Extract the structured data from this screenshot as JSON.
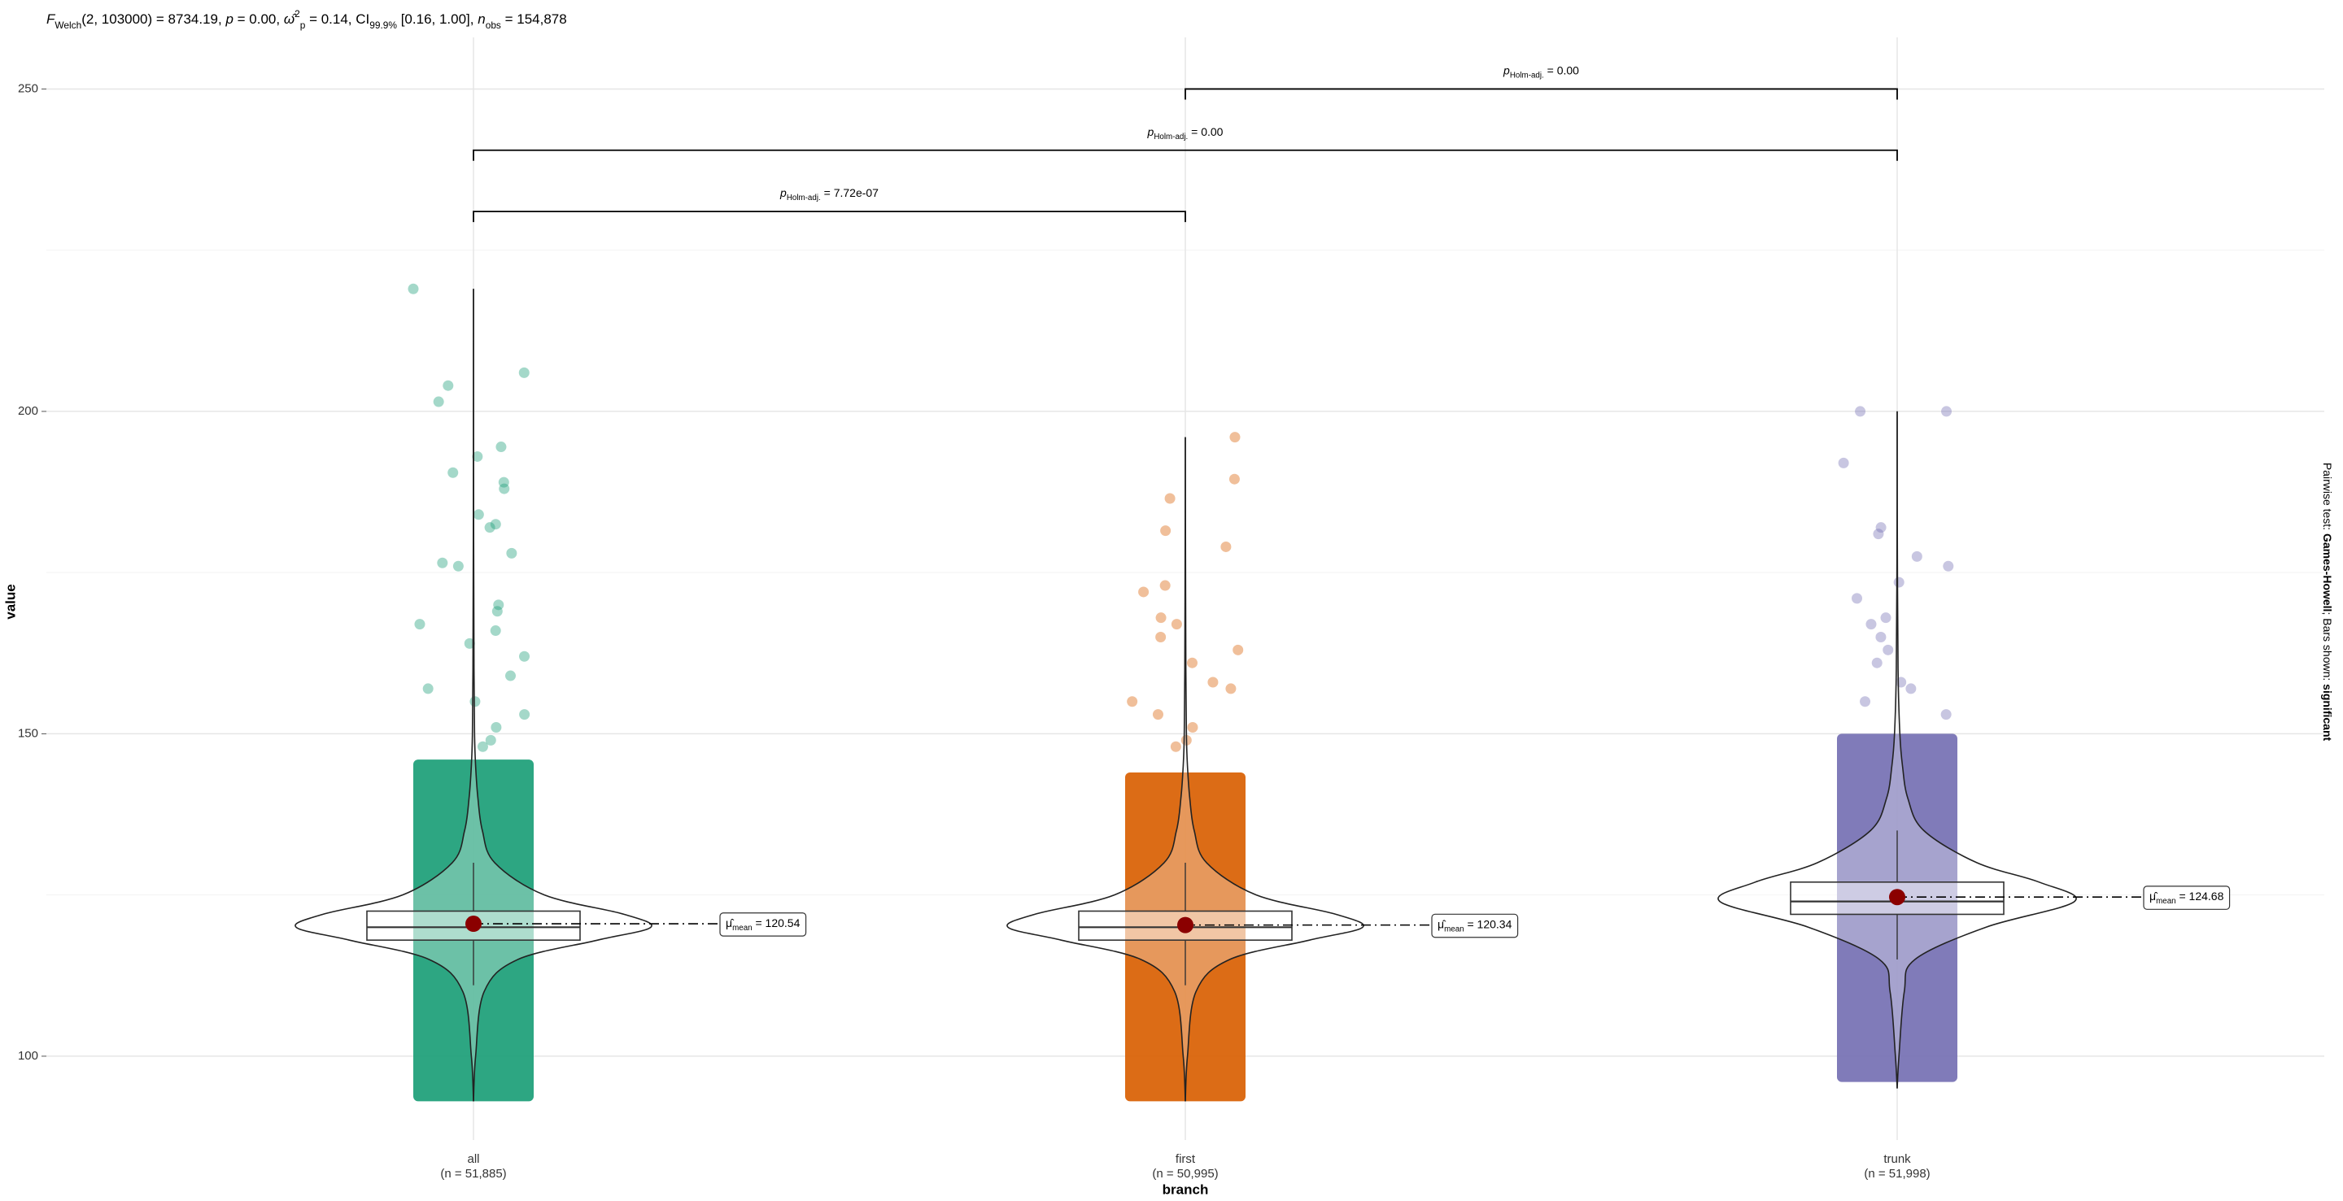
{
  "chart_data": {
    "type": "violin-box",
    "subtitle": [
      {
        "text": "F",
        "style": "italic"
      },
      {
        "text": "Welch",
        "style": "sub"
      },
      {
        "text": "(2, 103000) = 8734.19, ",
        "style": "normal"
      },
      {
        "text": "p",
        "style": "italic"
      },
      {
        "text": " = 0.00, ",
        "style": "normal"
      },
      {
        "text": "ω̂",
        "style": "italic"
      },
      {
        "text": "2",
        "style": "sup"
      },
      {
        "text": "p",
        "style": "sub"
      },
      {
        "text": " = 0.14, CI",
        "style": "normal"
      },
      {
        "text": "99.9%",
        "style": "sub"
      },
      {
        "text": " [0.16, 1.00], ",
        "style": "normal"
      },
      {
        "text": "n",
        "style": "italic"
      },
      {
        "text": "obs",
        "style": "sub"
      },
      {
        "text": " = 154,878",
        "style": "normal"
      }
    ],
    "caption": [
      {
        "text": "Pairwise test: ",
        "style": "normal"
      },
      {
        "text": "Games-Howell",
        "style": "bold"
      },
      {
        "text": "; Bars shown: ",
        "style": "normal"
      },
      {
        "text": "significant",
        "style": "bold"
      }
    ],
    "x_label": "branch",
    "y_label": "value",
    "ylim": [
      87,
      258
    ],
    "yticks": [
      100,
      150,
      200,
      250
    ],
    "minor_yticks": [
      125,
      175,
      225
    ],
    "grid": true,
    "mean_color": "#8b0000",
    "series": [
      {
        "name": "all",
        "n_label": "(n = 51,885)",
        "color": "#1b9e77",
        "mean": 120.54,
        "mean_label": [
          {
            "text": "μ̂",
            "style": "normal"
          },
          {
            "text": "mean",
            "style": "sub"
          },
          {
            "text": " = 120.54",
            "style": "normal"
          }
        ],
        "box": {
          "q1": 118,
          "median": 120,
          "q3": 122.5
        },
        "whisker": [
          111,
          130
        ],
        "dense_range": [
          93,
          146
        ],
        "points": [
          219,
          206,
          204,
          201.5,
          194.5,
          193,
          190.5,
          189,
          188,
          184,
          182.5,
          182,
          178,
          176.5,
          176,
          170,
          169,
          167,
          166,
          164,
          162,
          159,
          157,
          155,
          153,
          151,
          149,
          148
        ],
        "violin": {
          "y": [
            93,
            100,
            110,
            115,
            118,
            120,
            122,
            125,
            130,
            135,
            140,
            145,
            150,
            160,
            180,
            219
          ],
          "width": [
            0,
            0.012,
            0.06,
            0.25,
            0.7,
            1,
            0.85,
            0.4,
            0.12,
            0.05,
            0.025,
            0.012,
            0.006,
            0.003,
            0.001,
            0
          ]
        }
      },
      {
        "name": "first",
        "n_label": "(n = 50,995)",
        "color": "#d95f02",
        "mean": 120.34,
        "mean_label": [
          {
            "text": "μ̂",
            "style": "normal"
          },
          {
            "text": "mean",
            "style": "sub"
          },
          {
            "text": " = 120.34",
            "style": "normal"
          }
        ],
        "box": {
          "q1": 118,
          "median": 120,
          "q3": 122.5
        },
        "whisker": [
          111,
          130
        ],
        "dense_range": [
          93,
          144
        ],
        "points": [
          196,
          189.5,
          186.5,
          181.5,
          179,
          173,
          172,
          168,
          167,
          165,
          163,
          161,
          158,
          157,
          155,
          153,
          151,
          149,
          148
        ],
        "violin": {
          "y": [
            93,
            100,
            110,
            115,
            118,
            120,
            122,
            125,
            130,
            135,
            140,
            145,
            150,
            160,
            180,
            196
          ],
          "width": [
            0,
            0.012,
            0.06,
            0.25,
            0.7,
            1,
            0.85,
            0.4,
            0.12,
            0.05,
            0.025,
            0.012,
            0.006,
            0.003,
            0.001,
            0
          ]
        }
      },
      {
        "name": "trunk",
        "n_label": "(n = 51,998)",
        "color": "#7570b3",
        "mean": 124.68,
        "mean_label": [
          {
            "text": "μ̂",
            "style": "normal"
          },
          {
            "text": "mean",
            "style": "sub"
          },
          {
            "text": " = 124.68",
            "style": "normal"
          }
        ],
        "box": {
          "q1": 122,
          "median": 124,
          "q3": 127
        },
        "whisker": [
          115,
          135
        ],
        "dense_range": [
          96,
          150
        ],
        "points": [
          200,
          200,
          192,
          182,
          181,
          177.5,
          176,
          173.5,
          171,
          168,
          167,
          165,
          163,
          161,
          158,
          157,
          155,
          153
        ],
        "violin": {
          "y": [
            95,
            100,
            110,
            115,
            120,
            124,
            127,
            130,
            135,
            140,
            145,
            150,
            160,
            180,
            200
          ],
          "width": [
            0,
            0.01,
            0.04,
            0.1,
            0.5,
            1,
            0.8,
            0.45,
            0.15,
            0.06,
            0.03,
            0.015,
            0.005,
            0.001,
            0
          ]
        }
      }
    ],
    "comparisons": [
      {
        "groups": [
          0,
          1
        ],
        "y": 231,
        "label": [
          {
            "text": "p",
            "style": "italic"
          },
          {
            "text": "Holm-adj.",
            "style": "sub"
          },
          {
            "text": " = 7.72e-07",
            "style": "normal"
          }
        ]
      },
      {
        "groups": [
          0,
          2
        ],
        "y": 240.5,
        "label": [
          {
            "text": "p",
            "style": "italic"
          },
          {
            "text": "Holm-adj.",
            "style": "sub"
          },
          {
            "text": " = 0.00",
            "style": "normal"
          }
        ]
      },
      {
        "groups": [
          1,
          2
        ],
        "y": 250,
        "label": [
          {
            "text": "p",
            "style": "italic"
          },
          {
            "text": "Holm-adj.",
            "style": "sub"
          },
          {
            "text": " = 0.00",
            "style": "normal"
          }
        ]
      }
    ]
  }
}
